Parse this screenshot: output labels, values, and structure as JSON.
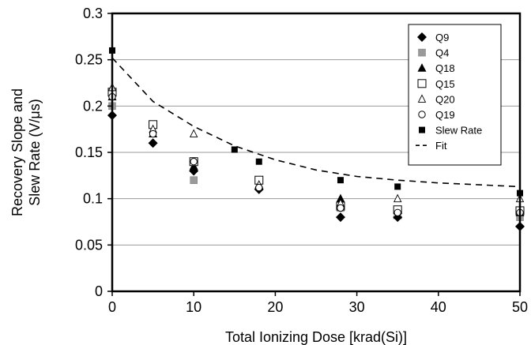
{
  "chart_data": {
    "type": "scatter",
    "xlabel": "Total Ionizing Dose [krad(Si)]",
    "ylabel_lines": [
      "Recovery Slope and",
      "Slew Rate (V/μs)"
    ],
    "xlim": [
      0,
      50
    ],
    "ylim": [
      0,
      0.3
    ],
    "xticks": [
      0,
      10,
      20,
      30,
      40,
      50
    ],
    "xtick_labels": [
      "0",
      "10",
      "20",
      "30",
      "40",
      "50"
    ],
    "yticks": [
      0,
      0.05,
      0.1,
      0.15,
      0.2,
      0.25,
      0.3
    ],
    "ytick_labels": [
      "0",
      "0.05",
      "0.1",
      "0.15",
      "0.2",
      "0.25",
      "0.3"
    ],
    "grid": "horizontal",
    "legend_position": "top-right",
    "series": [
      {
        "name": "Q9",
        "marker": "diamond-filled",
        "color": "#000000",
        "x": [
          0,
          5,
          10,
          18,
          28,
          35,
          50
        ],
        "y": [
          0.19,
          0.16,
          0.13,
          0.11,
          0.08,
          0.08,
          0.07
        ]
      },
      {
        "name": "Q4",
        "marker": "square-gray",
        "color": "#9a9a9a",
        "x": [
          0,
          5,
          10,
          18,
          28,
          35,
          50
        ],
        "y": [
          0.2,
          0.18,
          0.12,
          0.12,
          0.09,
          0.085,
          0.08
        ]
      },
      {
        "name": "Q18",
        "marker": "triangle-filled",
        "color": "#000000",
        "x": [
          0,
          5,
          10,
          18,
          28,
          35,
          50
        ],
        "y": [
          0.21,
          0.17,
          0.135,
          0.115,
          0.1,
          0.082,
          0.085
        ]
      },
      {
        "name": "Q15",
        "marker": "square-open",
        "color": "#000000",
        "x": [
          0,
          5,
          10,
          18,
          28,
          35,
          50
        ],
        "y": [
          0.215,
          0.18,
          0.14,
          0.12,
          0.092,
          0.088,
          0.087
        ]
      },
      {
        "name": "Q20",
        "marker": "triangle-open",
        "color": "#000000",
        "x": [
          0,
          5,
          10,
          18,
          28,
          35,
          50
        ],
        "y": [
          0.22,
          0.175,
          0.17,
          0.115,
          0.095,
          0.1,
          0.1
        ]
      },
      {
        "name": "Q19",
        "marker": "circle-open",
        "color": "#000000",
        "x": [
          0,
          5,
          10,
          18,
          28,
          35,
          50
        ],
        "y": [
          0.21,
          0.17,
          0.14,
          0.112,
          0.09,
          0.085,
          0.085
        ]
      },
      {
        "name": "Slew Rate",
        "marker": "square-filled",
        "color": "#000000",
        "x": [
          0,
          15,
          18,
          28,
          35,
          50
        ],
        "y": [
          0.26,
          0.153,
          0.14,
          0.12,
          0.113,
          0.106
        ]
      },
      {
        "name": "Fit",
        "marker": "dashed-line",
        "color": "#000000",
        "x": [
          0,
          5,
          10,
          15,
          20,
          25,
          30,
          35,
          40,
          45,
          50
        ],
        "y": [
          0.252,
          0.205,
          0.178,
          0.157,
          0.142,
          0.131,
          0.124,
          0.12,
          0.117,
          0.115,
          0.113
        ]
      }
    ]
  }
}
